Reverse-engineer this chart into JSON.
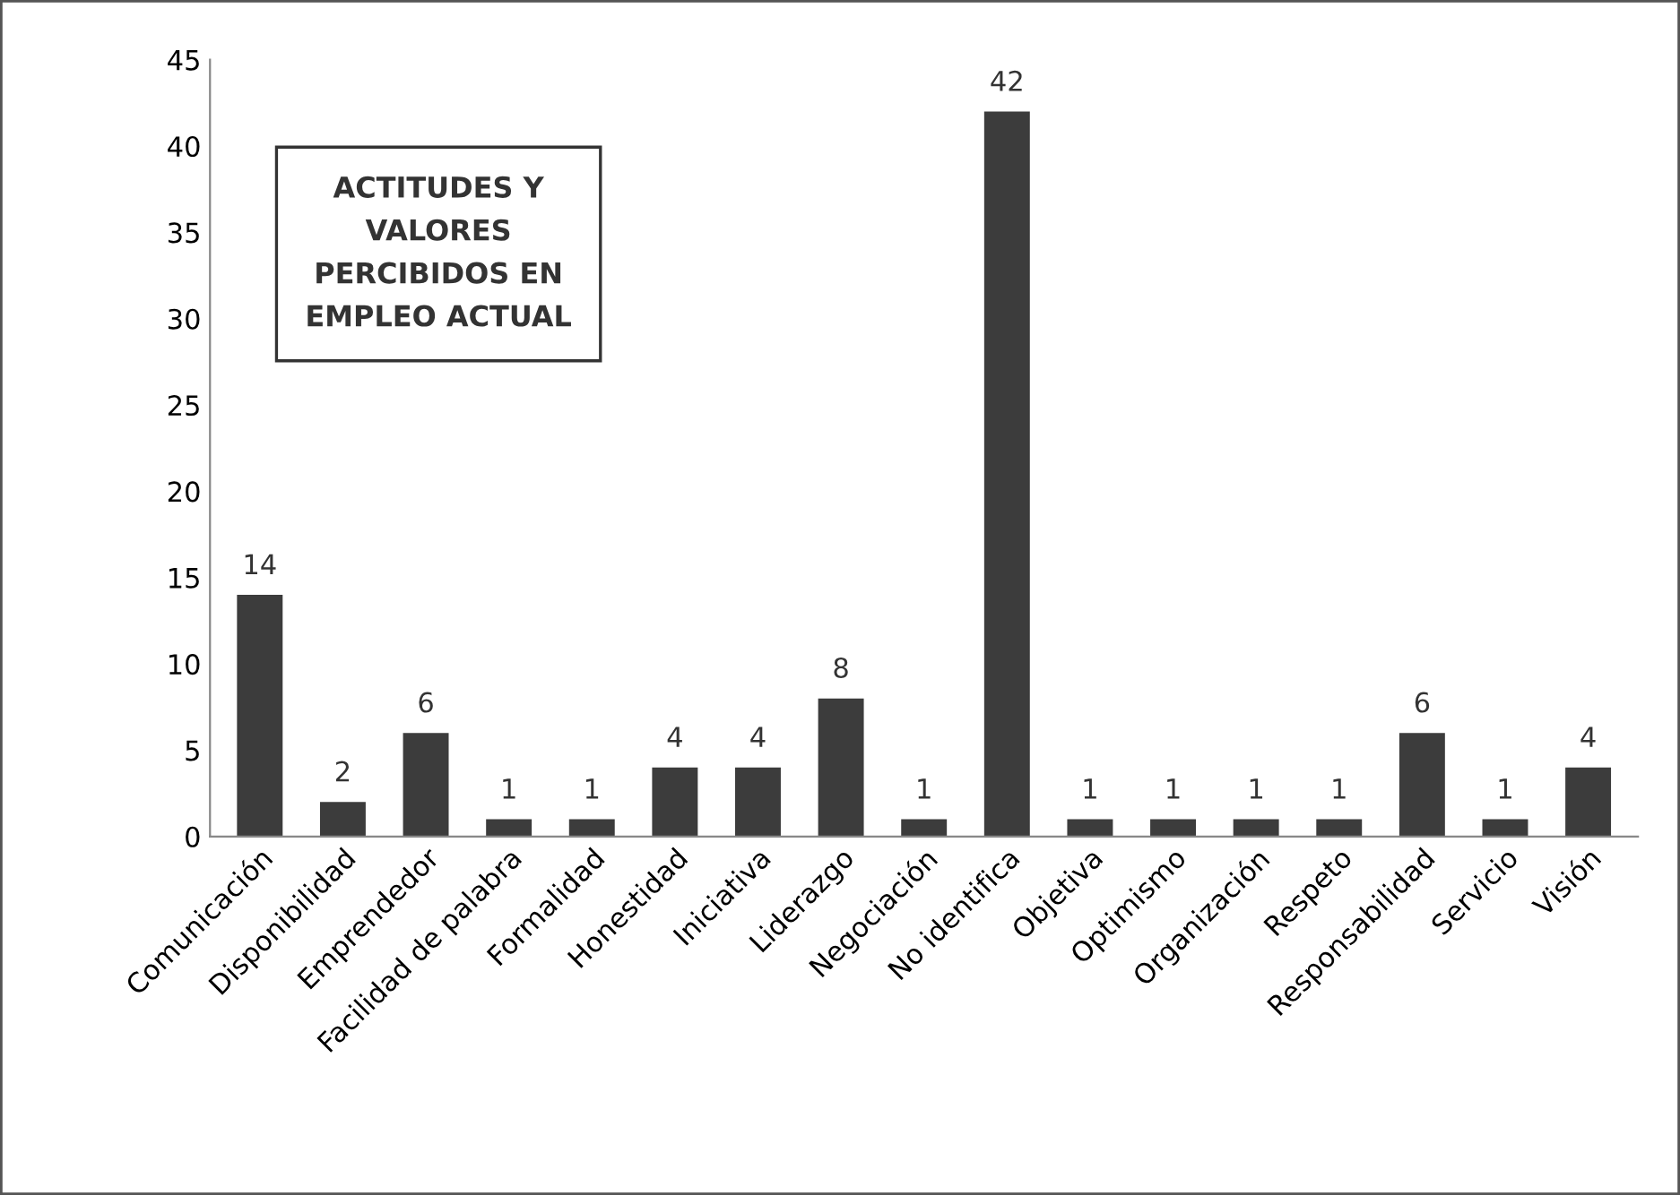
{
  "chart_data": {
    "type": "bar",
    "title": "ACTITUDES Y\nVALORES\nPERCIBIDOS EN\nEMPLEO ACTUAL",
    "categories": [
      "Comunicación",
      "Disponibilidad",
      "Emprendedor",
      "Facilidad de palabra",
      "Formalidad",
      "Honestidad",
      "Iniciativa",
      "Liderazgo",
      "Negociación",
      "No identifica",
      "Objetiva",
      "Optimismo",
      "Organización",
      "Respeto",
      "Responsabilidad",
      "Servicio",
      "Visión"
    ],
    "values": [
      14,
      2,
      6,
      1,
      1,
      4,
      4,
      8,
      1,
      42,
      1,
      1,
      1,
      1,
      6,
      1,
      4
    ],
    "color": "#3c3c3c",
    "ylim": [
      0,
      45
    ],
    "yticks": [
      0,
      5,
      10,
      15,
      20,
      25,
      30,
      35,
      40,
      45
    ],
    "grid": false,
    "legend": false,
    "data_labels": true
  }
}
